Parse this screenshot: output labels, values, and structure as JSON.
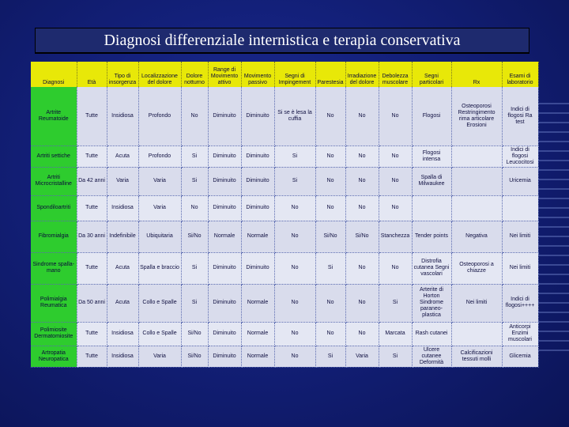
{
  "title": "Diagnosi differenziale internistica e terapia conservativa",
  "headers": [
    "Diagnosi",
    "Età",
    "Tipo di insorgenza",
    "Localizzazione del dolore",
    "Dolore notturno",
    "Range di Movimento attivo",
    "Movimento passivo",
    "Segni di Impingement",
    "Parestesia",
    "Irradiazione del dolore",
    "Debolezza muscolare",
    "Segni particolari",
    "Rx",
    "Esami di laboratorio"
  ],
  "rows": [
    [
      "Artrite Reumatoide",
      "Tutte",
      "Insidiosa",
      "Profondo",
      "No",
      "Diminuito",
      "Diminuito",
      "Si se è lesa la cuffia",
      "No",
      "No",
      "No",
      "Flogosi",
      "Osteoporosi Restringimento rima articolare Erosioni",
      "Indici di flogosi Ra test"
    ],
    [
      "Artriti settiche",
      "Tutte",
      "Acuta",
      "Profondo",
      "Si",
      "Diminuito",
      "Diminuito",
      "Si",
      "No",
      "No",
      "No",
      "Flogosi intensa",
      "",
      "Indici di flogosi Leucocitosi"
    ],
    [
      "Artriti Microcristalline",
      "Da 42 anni",
      "Varia",
      "Varia",
      "Si",
      "Diminuito",
      "Diminuito",
      "Si",
      "No",
      "No",
      "No",
      "Spalla di Milwaukee",
      "",
      "Uricemia"
    ],
    [
      "Spondiloartriti",
      "Tutte",
      "Insidiosa",
      "Varia",
      "No",
      "Diminuito",
      "Diminuito",
      "No",
      "No",
      "No",
      "No",
      "",
      "",
      ""
    ],
    [
      "Fibromialgia",
      "Da 30 anni",
      "Indefinibile",
      "Ubiquitaria",
      "Si/No",
      "Normale",
      "Normale",
      "No",
      "Si/No",
      "Si/No",
      "Stanchezza",
      "Tender points",
      "Negativa",
      "Nei limiti"
    ],
    [
      "Sindrome spalla-mano",
      "Tutte",
      "Acuta",
      "Spalla e braccio",
      "Si",
      "Diminuito",
      "Diminuito",
      "No",
      "Si",
      "No",
      "No",
      "Distrofia cutanea Segni vascolari",
      "Osteoporosi a chiazze",
      "Nei limiti"
    ],
    [
      "Polimialgia Reumatica",
      "Da 50 anni",
      "Acuta",
      "Collo e Spalle",
      "Si",
      "Diminuito",
      "Normale",
      "No",
      "No",
      "No",
      "Si",
      "Arterite di Horton Sindrome paraneo-plastica",
      "Nei limiti",
      "Indici di flogosi++++"
    ],
    [
      "Polimiosite Dermatomiosite",
      "Tutte",
      "Insidiosa",
      "Collo e Spalle",
      "Si/No",
      "Diminuito",
      "Normale",
      "No",
      "No",
      "No",
      "Marcata",
      "Rash cutanei",
      "",
      "Anticorpi Enzimi muscolari"
    ],
    [
      "Artropatia Neuropatica",
      "Tutte",
      "Insidiosa",
      "Varia",
      "Si/No",
      "Diminuito",
      "Normale",
      "No",
      "Si",
      "Varia",
      "Si",
      "Ulcere cutanee Deformità",
      "Calcificazioni tessuti molli",
      "Glicemia"
    ]
  ]
}
